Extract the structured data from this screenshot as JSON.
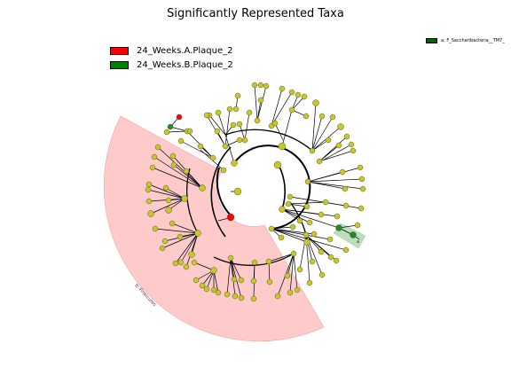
{
  "title": "Significantly Represented Taxa",
  "legend": [
    {
      "label": "24_Weeks.A.Plaque_2",
      "color": "#ff0000"
    },
    {
      "label": "24_Weeks.B.Plaque_2",
      "color": "#008000"
    }
  ],
  "side_legend": {
    "label": "a: F_Saccharibacteria__TM7_",
    "color": "#006400"
  },
  "clades": {
    "red_clade_label": "b: Firmicutes",
    "green_clade_label": "a"
  },
  "colors": {
    "node_default": "#c8c81e",
    "node_red": "#ff0000",
    "node_green": "#228b22",
    "red_shade": "#ffc8c8",
    "green_shade": "#b4dcb4"
  }
}
